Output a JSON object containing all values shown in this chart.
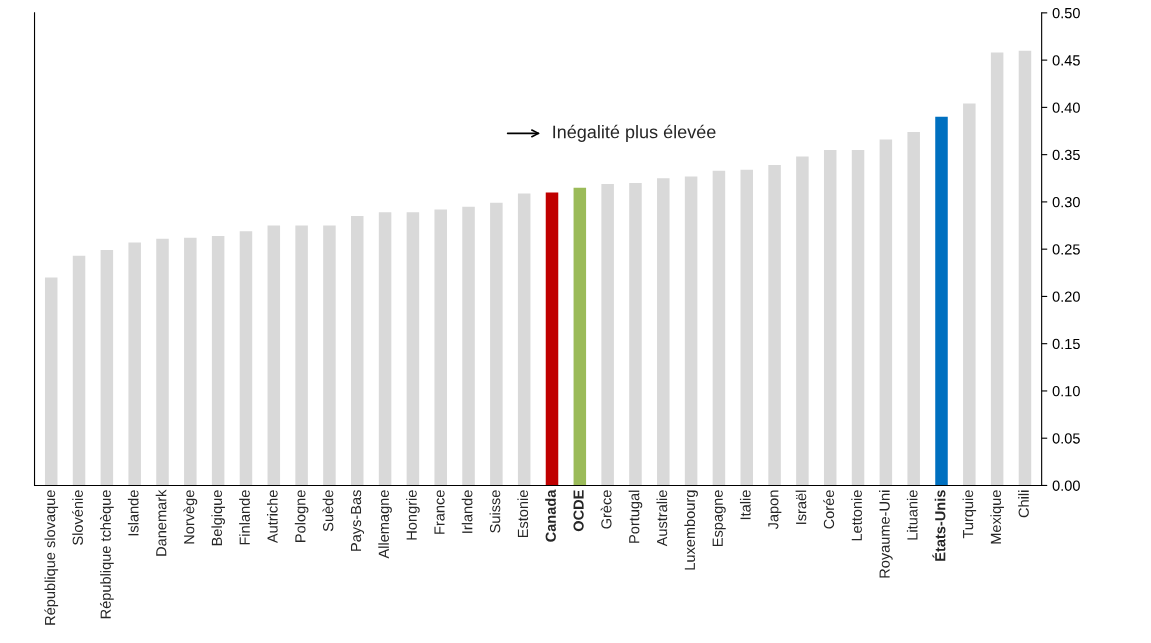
{
  "chart_data": {
    "type": "bar",
    "categories": [
      "République slovaque",
      "Slovénie",
      "République tchèque",
      "Islande",
      "Danemark",
      "Norvège",
      "Belgique",
      "Finlande",
      "Autriche",
      "Pologne",
      "Suède",
      "Pays-Bas",
      "Allemagne",
      "Hongrie",
      "France",
      "Irlande",
      "Suisse",
      "Estonie",
      "Canada",
      "OCDE",
      "Grèce",
      "Portugal",
      "Australie",
      "Luxembourg",
      "Espagne",
      "Italie",
      "Japon",
      "Israël",
      "Corée",
      "Lettonie",
      "Royaume-Uni",
      "Lituanie",
      "États-Unis",
      "Turquie",
      "Mexique",
      "Chili"
    ],
    "values": [
      0.22,
      0.243,
      0.249,
      0.257,
      0.261,
      0.262,
      0.264,
      0.269,
      0.275,
      0.275,
      0.275,
      0.285,
      0.289,
      0.289,
      0.292,
      0.295,
      0.299,
      0.309,
      0.31,
      0.315,
      0.319,
      0.32,
      0.325,
      0.327,
      0.333,
      0.334,
      0.339,
      0.348,
      0.355,
      0.355,
      0.366,
      0.374,
      0.39,
      0.404,
      0.458,
      0.46
    ],
    "colors": [
      "#d9d9d9",
      "#d9d9d9",
      "#d9d9d9",
      "#d9d9d9",
      "#d9d9d9",
      "#d9d9d9",
      "#d9d9d9",
      "#d9d9d9",
      "#d9d9d9",
      "#d9d9d9",
      "#d9d9d9",
      "#d9d9d9",
      "#d9d9d9",
      "#d9d9d9",
      "#d9d9d9",
      "#d9d9d9",
      "#d9d9d9",
      "#d9d9d9",
      "#c00000",
      "#9bbb59",
      "#d9d9d9",
      "#d9d9d9",
      "#d9d9d9",
      "#d9d9d9",
      "#d9d9d9",
      "#d9d9d9",
      "#d9d9d9",
      "#d9d9d9",
      "#d9d9d9",
      "#d9d9d9",
      "#d9d9d9",
      "#d9d9d9",
      "#0070c0",
      "#d9d9d9",
      "#d9d9d9",
      "#d9d9d9"
    ],
    "ylim": [
      0,
      0.5
    ],
    "yticks": [
      {
        "value": 0,
        "label": "0.00"
      },
      {
        "value": 0.05,
        "label": "0.05"
      },
      {
        "value": 0.1,
        "label": "0.10"
      },
      {
        "value": 0.15,
        "label": "0.15"
      },
      {
        "value": 0.2,
        "label": "0.20"
      },
      {
        "value": 0.25,
        "label": "0.25"
      },
      {
        "value": 0.3,
        "label": "0.30"
      },
      {
        "value": 0.35,
        "label": "0.35"
      },
      {
        "value": 0.4,
        "label": "0.40"
      },
      {
        "value": 0.45,
        "label": "0.45"
      },
      {
        "value": 0.5,
        "label": "0.50"
      }
    ],
    "annotations": [
      "Inégalité plus élevée"
    ],
    "grid": false,
    "legend": false
  }
}
